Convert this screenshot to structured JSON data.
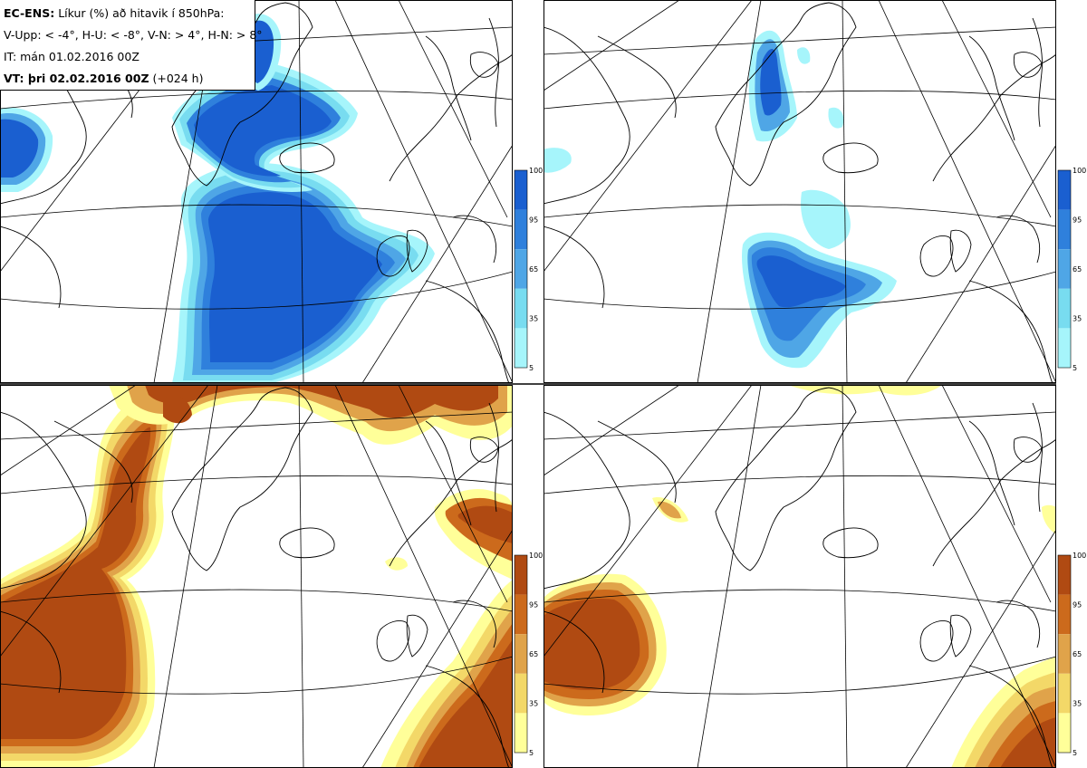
{
  "info": {
    "model": "EC-ENS:",
    "title": "Líkur (%) að hitavik í 850hPa:",
    "thresholds": "V-Upp: < -4°, H-U: < -8°, V-N: > 4°, H-N: > 8°",
    "it_line": "IT: mán 01.02.2016 00Z",
    "vt_bold": "VT: þri 02.02.2016 00Z",
    "vt_lead": "(+024 h)"
  },
  "panels": [
    {
      "id": "V-Upp",
      "palette": "blue"
    },
    {
      "id": "H-U",
      "palette": "blue"
    },
    {
      "id": "V-N",
      "palette": "orange"
    },
    {
      "id": "H-N",
      "palette": "orange"
    }
  ],
  "colorbar": {
    "ticks": [
      "100",
      "95",
      "65",
      "35",
      "5"
    ],
    "blue_colors": [
      "#1a5fd0",
      "#2f80dc",
      "#4fa6e6",
      "#78dcf0",
      "#a6f5fb"
    ],
    "orange_colors": [
      "#b04a12",
      "#cc6a1c",
      "#e0a34a",
      "#f3d868",
      "#ffff99"
    ]
  }
}
